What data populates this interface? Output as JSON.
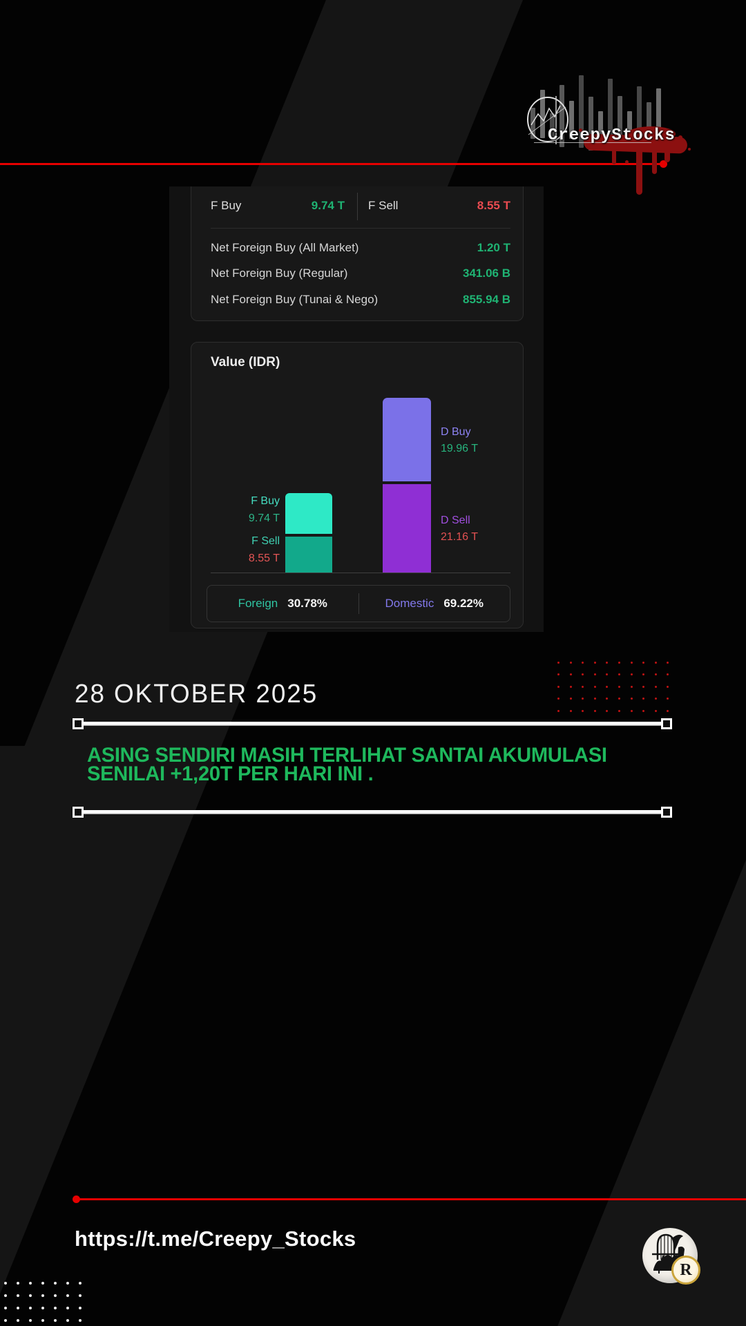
{
  "brand": {
    "logo_text": "CreepyStocks"
  },
  "summary_card": {
    "f_buy_label": "F Buy",
    "f_buy_value": "9.74 T",
    "f_sell_label": "F Sell",
    "f_sell_value": "8.55 T",
    "rows": [
      {
        "label": "Net Foreign Buy (All Market)",
        "value": "1.20 T"
      },
      {
        "label": "Net Foreign Buy (Regular)",
        "value": "341.06 B"
      },
      {
        "label": "Net Foreign Buy (Tunai & Nego)",
        "value": "855.94 B"
      }
    ]
  },
  "value_card": {
    "title": "Value (IDR)",
    "f_buy_label": "F Buy",
    "f_buy_value": "9.74 T",
    "f_sell_label": "F Sell",
    "f_sell_value": "8.55 T",
    "d_buy_label": "D Buy",
    "d_buy_value": "19.96 T",
    "d_sell_label": "D Sell",
    "d_sell_value": "21.16 T",
    "foreign_label": "Foreign",
    "foreign_percent": "30.78%",
    "domestic_label": "Domestic",
    "domestic_percent": "69.22%"
  },
  "chart_data": {
    "type": "bar",
    "title": "Value (IDR)",
    "unit": "T = trillion IDR, B = billion IDR",
    "stacked": true,
    "axes": "none",
    "legend": "inline labels beside bars",
    "stacked_columns": [
      {
        "category": "Foreign",
        "segments": [
          {
            "name": "F Buy",
            "value_T": 9.74,
            "color": "#2ee9c6"
          },
          {
            "name": "F Sell",
            "value_T": 8.55,
            "color": "#12a98b"
          }
        ]
      },
      {
        "category": "Domestic",
        "segments": [
          {
            "name": "D Buy",
            "value_T": 19.96,
            "color": "#7b71e8"
          },
          {
            "name": "D Sell",
            "value_T": 21.16,
            "color": "#8f2fd4"
          }
        ]
      }
    ],
    "footer_stats": [
      {
        "label": "Foreign",
        "value": "30.78%"
      },
      {
        "label": "Domestic",
        "value": "69.22%"
      }
    ]
  },
  "date_heading": "28 OKTOBER 2025",
  "headline": {
    "line1": "ASING SENDIRI MASIH TERLIHAT SANTAI AKUMULASI",
    "line2": "SENILAI +1,20T PER HARI INI ."
  },
  "footer": {
    "url": "https://t.me/Creepy_Stocks",
    "coin_letter": "R"
  },
  "colors": {
    "positive_green": "#1fb373",
    "negative_red": "#e94b50",
    "headline_green": "#1eb85c",
    "accent_red": "#e60000",
    "f_buy": "#2ee9c6",
    "f_sell": "#12a98b",
    "d_buy": "#7b71e8",
    "d_sell": "#8f2fd4",
    "foreign": "#2fc4a2",
    "domestic": "#8278ea"
  }
}
